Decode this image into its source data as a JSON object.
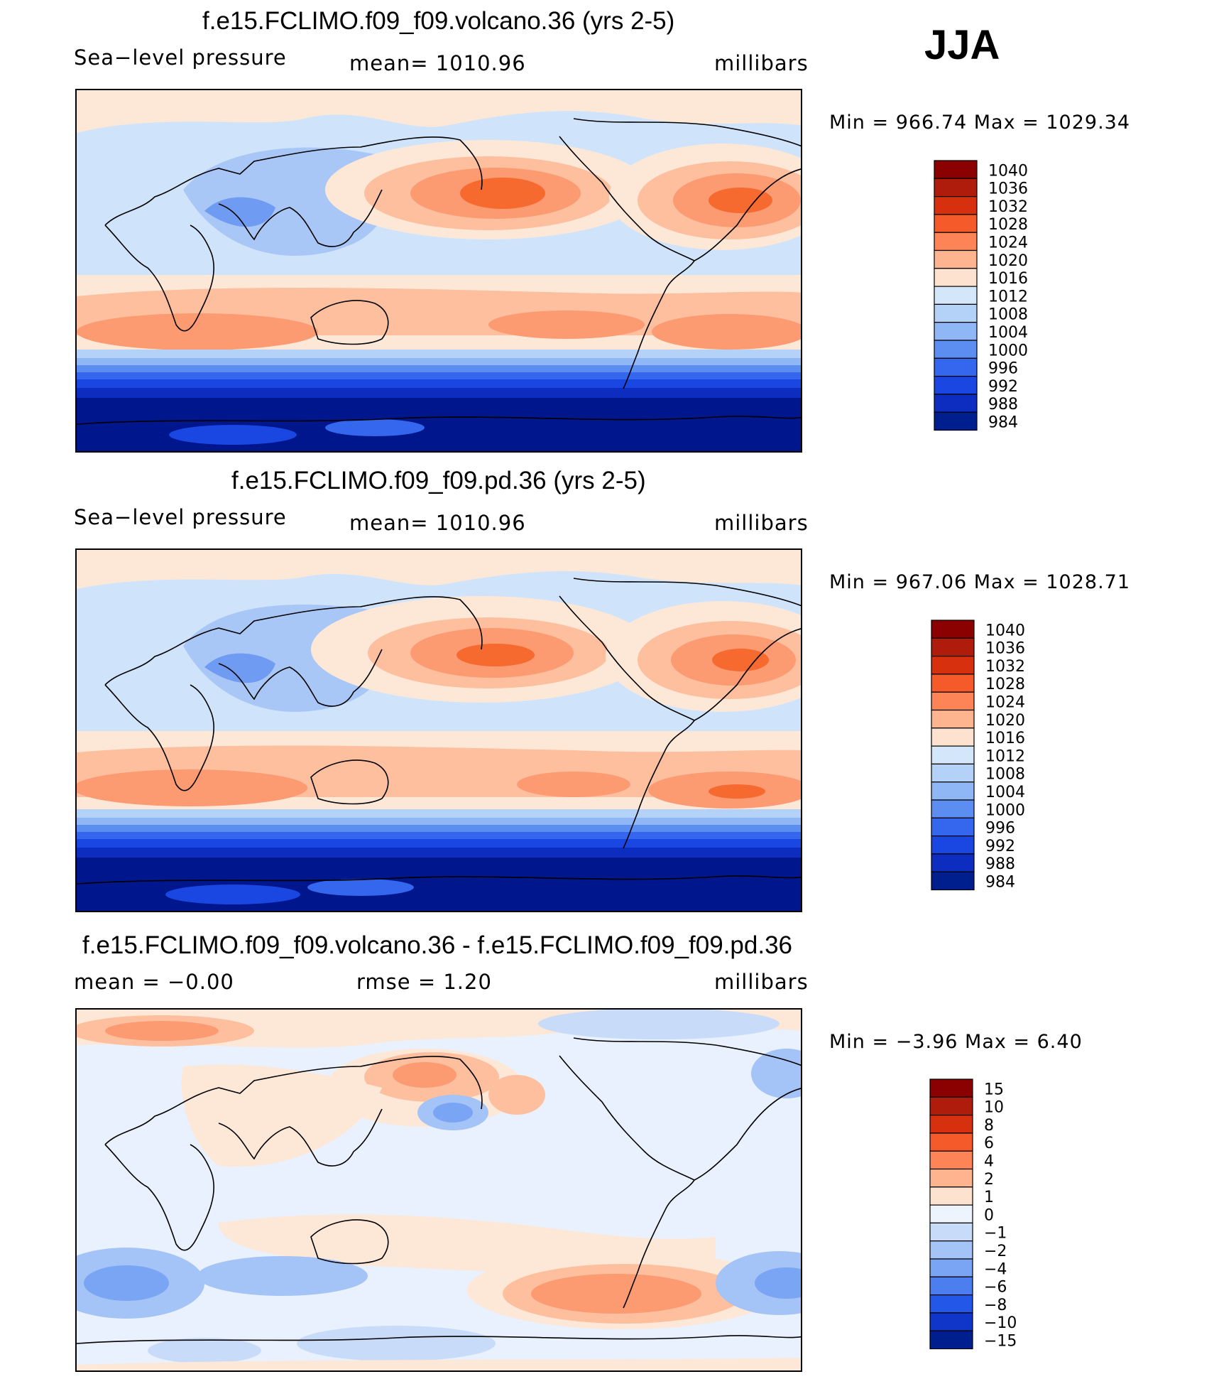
{
  "season": "JJA",
  "panels": [
    {
      "title": "f.e15.FCLIMO.f09_f09.volcano.36 (yrs 2-5)",
      "left_label": "Sea−level pressure",
      "mid_label": "mean=  1010.96",
      "right_label": "millibars",
      "range_label": "Min  =  966.74  Max  =  1029.34",
      "colorbar": {
        "colors": [
          "#8b0000",
          "#b01c0c",
          "#d7300f",
          "#f45a2a",
          "#fc8457",
          "#fdb48f",
          "#fde3cf",
          "#d4e6fa",
          "#b4d2f7",
          "#8fb6f5",
          "#5c8ef2",
          "#3466ee",
          "#1a47e2",
          "#0d2dc0",
          "#001f8f"
        ],
        "labels": [
          "1040",
          "1036",
          "1032",
          "1028",
          "1024",
          "1020",
          "1016",
          "1012",
          "1008",
          "1004",
          "1000",
          "996",
          "992",
          "988",
          "984"
        ]
      }
    },
    {
      "title": "f.e15.FCLIMO.f09_f09.pd.36 (yrs 2-5)",
      "left_label": "Sea−level pressure",
      "mid_label": "mean=  1010.96",
      "right_label": "millibars",
      "range_label": "Min  =  967.06  Max  =  1028.71",
      "colorbar": {
        "colors": [
          "#8b0000",
          "#b01c0c",
          "#d7300f",
          "#f45a2a",
          "#fc8457",
          "#fdb48f",
          "#fde3cf",
          "#d4e6fa",
          "#b4d2f7",
          "#8fb6f5",
          "#5c8ef2",
          "#3466ee",
          "#1a47e2",
          "#0d2dc0",
          "#001f8f"
        ],
        "labels": [
          "1040",
          "1036",
          "1032",
          "1028",
          "1024",
          "1020",
          "1016",
          "1012",
          "1008",
          "1004",
          "1000",
          "996",
          "992",
          "988",
          "984"
        ]
      }
    },
    {
      "title": "f.e15.FCLIMO.f09_f09.volcano.36 - f.e15.FCLIMO.f09_f09.pd.36",
      "left_label": "mean  =    −0.00",
      "mid_label": "rmse  =     1.20",
      "right_label": "millibars",
      "range_label": "Min  =    −3.96  Max  =      6.40",
      "colorbar": {
        "colors": [
          "#8b0000",
          "#b01c0c",
          "#d7300f",
          "#f45a2a",
          "#fc8457",
          "#fdb48f",
          "#fde3cf",
          "#eef4fd",
          "#c8dcf9",
          "#a4c3f6",
          "#7aa4f4",
          "#4c7ef0",
          "#2357e8",
          "#0f36c8",
          "#001f8f"
        ],
        "labels": [
          "15",
          "10",
          "8",
          "6",
          "4",
          "2",
          "1",
          "0",
          "−1",
          "−2",
          "−4",
          "−6",
          "−8",
          "−10",
          "−15"
        ]
      }
    }
  ],
  "palette": {
    "deep_blue": "#00168c",
    "mid_blue": "#1a47e2",
    "light_blue": "#cfe4fb",
    "pale": "#fde8d8",
    "peach": "#fdbf9e",
    "salmon": "#fc9a72",
    "orange": "#f6692f",
    "coast": "#000000"
  }
}
